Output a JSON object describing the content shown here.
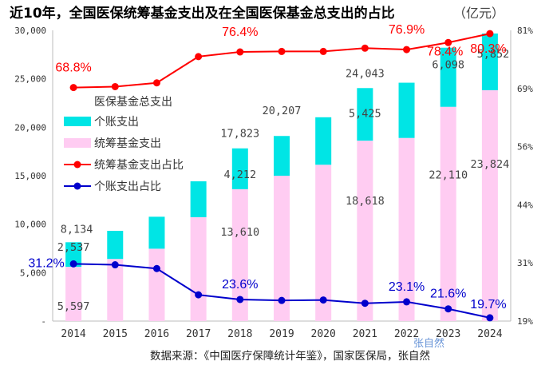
{
  "chart_data": {
    "type": "bar",
    "title": "近10年，全国医保统筹基金支出及在全国医保基金总支出的占比",
    "unit": "（亿元）",
    "categories": [
      "2014",
      "2015",
      "2016",
      "2017",
      "2018",
      "2019",
      "2020",
      "2021",
      "2022",
      "2023",
      "2024"
    ],
    "left_axis": {
      "ylim": [
        0,
        30000
      ],
      "ticks": [
        "-",
        "5,000",
        "10,000",
        "15,000",
        "20,000",
        "25,000",
        "30,000"
      ]
    },
    "right_axis": {
      "ylim": [
        19,
        81
      ],
      "ticks": [
        "19%",
        "31%",
        "44%",
        "56%",
        "69%",
        "81%"
      ]
    },
    "series": [
      {
        "name": "医保基金总支出",
        "values": [
          8134,
          9312,
          10767,
          14422,
          17823,
          20207,
          21032,
          24043,
          24597,
          28208,
          29676
        ],
        "labels": [
          "8,134",
          "",
          "",
          "",
          "17,823",
          "20,207",
          "",
          "24,043",
          "",
          "",
          ""
        ]
      },
      {
        "name": "个账支出",
        "color": "#00e5e5",
        "values": [
          2537,
          2900,
          3300,
          3700,
          4212,
          4100,
          4900,
          5425,
          5700,
          6098,
          5852
        ],
        "labels": [
          "2,537",
          "",
          "",
          "",
          "4,212",
          "",
          "",
          "5,425",
          "",
          "6,098",
          "5,852"
        ]
      },
      {
        "name": "统筹基金支出",
        "color": "#ffccf2",
        "values": [
          5597,
          6412,
          7467,
          10722,
          13610,
          15000,
          16132,
          18618,
          18897,
          22110,
          23824
        ],
        "labels": [
          "5,597",
          "",
          "",
          "",
          "13,610",
          "",
          "",
          "18,618",
          "",
          "22,110",
          "23,824"
        ]
      },
      {
        "name": "统筹基金支出占比",
        "color": "#ff0000",
        "values": [
          68.8,
          69.0,
          69.8,
          75.4,
          76.4,
          76.5,
          76.5,
          77.2,
          76.9,
          78.4,
          80.3
        ],
        "labels": [
          "68.8%",
          "",
          "",
          "",
          "76.4%",
          "",
          "",
          "",
          "76.9%",
          "78.4%",
          "80.3%"
        ]
      },
      {
        "name": "个账支出占比",
        "color": "#0000cc",
        "values": [
          31.2,
          31.0,
          30.2,
          24.6,
          23.6,
          23.4,
          23.5,
          22.8,
          23.1,
          21.6,
          19.7
        ],
        "labels": [
          "31.2%",
          "",
          "",
          "",
          "23.6%",
          "",
          "",
          "",
          "23.1%",
          "21.6%",
          "19.7%"
        ]
      }
    ],
    "legend": "left",
    "grid": false
  },
  "source": "数据来源：《中国医疗保障统计年鉴》，国家医保局，张自然",
  "watermark": "张自然"
}
